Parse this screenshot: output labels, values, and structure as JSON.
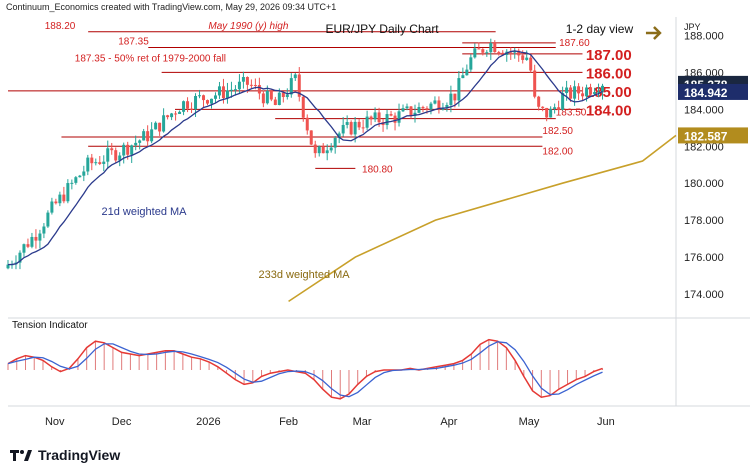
{
  "header": {
    "credit": "Continuum_Economics created with TradingView.com, May 29, 2026 09:34 UTC+1"
  },
  "footer": {
    "brand": "TradingView"
  },
  "colors": {
    "up": "#26a69a",
    "down": "#ef5350",
    "ma21": "#2b3a8c",
    "ma233": "#c8a02a",
    "level_red": "#d32020",
    "title_arrow": "#8b6d1a",
    "cur_bg": "#1a2740",
    "ma233_bg": "#b28c1e"
  },
  "chart_data": {
    "type": "candlestick",
    "title": "EUR/JPY Daily Chart",
    "view_note": "1-2 day view",
    "currency_label": "JPY",
    "y_range": [
      172.7,
      189.0
    ],
    "y_ticks": [
      "188.000",
      "186.000",
      "184.000",
      "182.000",
      "180.000",
      "178.000",
      "176.000",
      "174.000"
    ],
    "x_labels": [
      "Nov",
      "Dec",
      "2026",
      "Feb",
      "Mar",
      "Apr",
      "May",
      "Jun"
    ],
    "current_price": "185.378",
    "ma21_label": "21d weighted MA",
    "ma21_value": "184.942",
    "ma233_label": "233d weighted MA",
    "ma233_value": "182.587",
    "ma233_points": [
      [
        173.6,
        0.42
      ],
      [
        176.0,
        0.52
      ],
      [
        178.0,
        0.64
      ],
      [
        180.0,
        0.83
      ],
      [
        181.2,
        0.95
      ],
      [
        182.587,
        1.0
      ]
    ],
    "resistance_labels": [
      {
        "value": 188.2,
        "text": "188.20"
      },
      {
        "value": 188.2,
        "text": "May 1990 (y) high"
      },
      {
        "value": 187.6,
        "text": "187.60"
      },
      {
        "value": 187.35,
        "text": "187.35"
      },
      {
        "value": 187.35,
        "text": "187.35 - 50% ret of 1979-2000 fall"
      },
      {
        "value": 187.0,
        "text": "187.00"
      },
      {
        "value": 186.0,
        "text": "186.00"
      },
      {
        "value": 185.0,
        "text": "185.00"
      }
    ],
    "support_labels": [
      {
        "value": 184.0,
        "text": "184.00"
      },
      {
        "value": 183.5,
        "text": "183.50"
      },
      {
        "value": 182.5,
        "text": "182.50"
      },
      {
        "value": 182.0,
        "text": "182.00"
      },
      {
        "value": 180.8,
        "text": "180.80"
      }
    ],
    "indicator": {
      "title": "Tension Indicator",
      "values": [
        0.2,
        0.35,
        0.45,
        0.4,
        0.3,
        0.1,
        -0.05,
        0.05,
        0.35,
        0.7,
        0.9,
        0.85,
        0.7,
        0.55,
        0.5,
        0.45,
        0.5,
        0.55,
        0.6,
        0.6,
        0.5,
        0.4,
        0.35,
        0.25,
        0.1,
        -0.1,
        -0.3,
        -0.45,
        -0.4,
        -0.2,
        -0.1,
        -0.05,
        0.0,
        -0.05,
        -0.1,
        -0.3,
        -0.6,
        -0.85,
        -0.9,
        -0.75,
        -0.45,
        -0.2,
        -0.05,
        0.0,
        0.0,
        0.0,
        0.05,
        0.0,
        0.05,
        0.1,
        0.15,
        0.2,
        0.3,
        0.5,
        0.8,
        0.95,
        0.9,
        0.7,
        0.3,
        -0.2,
        -0.65,
        -0.85,
        -0.8,
        -0.6,
        -0.45,
        -0.3,
        -0.2,
        -0.05,
        0.05
      ]
    }
  }
}
